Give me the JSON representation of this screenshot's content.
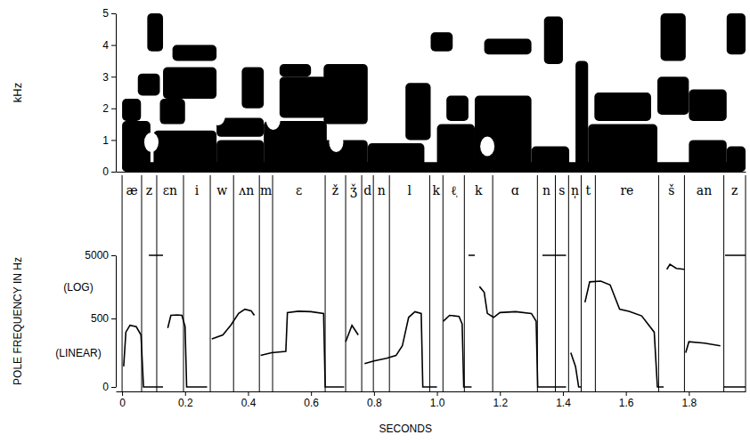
{
  "chart_data": [
    {
      "type": "spectrogram",
      "ylabel": "kHz",
      "xlim": [
        -0.02,
        1.98
      ],
      "ylim": [
        0,
        5
      ],
      "yticks": [
        0,
        1,
        2,
        3,
        4,
        5
      ],
      "tick_labels": "y",
      "color": "#000000",
      "regions": [
        [
          0.0,
          1.98,
          0.0,
          0.3
        ],
        [
          0.0,
          0.09,
          0.0,
          1.6
        ],
        [
          0.0,
          0.06,
          1.6,
          2.3
        ],
        [
          0.05,
          0.12,
          2.4,
          3.1
        ],
        [
          0.08,
          0.13,
          3.8,
          5.0
        ],
        [
          0.1,
          0.3,
          0.0,
          1.3
        ],
        [
          0.12,
          0.2,
          1.5,
          2.3
        ],
        [
          0.13,
          0.3,
          2.3,
          3.3
        ],
        [
          0.16,
          0.3,
          3.5,
          4.0
        ],
        [
          0.3,
          0.45,
          0.0,
          1.0
        ],
        [
          0.3,
          0.45,
          1.1,
          1.7
        ],
        [
          0.38,
          0.45,
          2.0,
          3.3
        ],
        [
          0.45,
          0.65,
          0.0,
          1.6
        ],
        [
          0.5,
          0.65,
          1.7,
          3.0
        ],
        [
          0.5,
          0.6,
          3.0,
          3.4
        ],
        [
          0.62,
          0.78,
          0.0,
          1.0
        ],
        [
          0.64,
          0.78,
          1.5,
          3.4
        ],
        [
          0.78,
          0.96,
          0.0,
          0.9
        ],
        [
          0.9,
          0.98,
          1.0,
          2.8
        ],
        [
          0.98,
          1.05,
          3.8,
          4.4
        ],
        [
          1.0,
          1.12,
          0.0,
          1.5
        ],
        [
          1.03,
          1.1,
          1.6,
          2.4
        ],
        [
          1.12,
          1.3,
          0.0,
          2.4
        ],
        [
          1.15,
          1.3,
          3.7,
          4.2
        ],
        [
          1.3,
          1.42,
          0.0,
          0.8
        ],
        [
          1.34,
          1.4,
          3.4,
          4.9
        ],
        [
          1.44,
          1.48,
          0.0,
          3.5
        ],
        [
          1.48,
          1.7,
          0.0,
          1.5
        ],
        [
          1.5,
          1.68,
          1.6,
          2.5
        ],
        [
          1.7,
          1.8,
          1.8,
          3.0
        ],
        [
          1.71,
          1.79,
          3.5,
          5.0
        ],
        [
          1.8,
          1.92,
          0.0,
          1.0
        ],
        [
          1.8,
          1.92,
          1.6,
          2.6
        ],
        [
          1.92,
          1.98,
          3.7,
          5.0
        ],
        [
          1.92,
          1.98,
          0.0,
          0.8
        ]
      ],
      "holes": [
        [
          0.093,
          0.93
        ],
        [
          0.305,
          1.77
        ],
        [
          0.48,
          1.63
        ],
        [
          0.68,
          0.93
        ],
        [
          1.16,
          0.8
        ]
      ]
    },
    {
      "type": "line",
      "ylabel": "POLE FREQUENCY IN Hz",
      "xlabel": "SECONDS",
      "annotations": [
        "(LOG)",
        "(LINEAR)"
      ],
      "xlim": [
        -0.02,
        1.98
      ],
      "ylim": [
        0,
        5000
      ],
      "yticks": [
        0,
        500,
        5000
      ],
      "xticks": [
        0,
        0.2,
        0.4,
        0.6,
        0.8,
        {
          "value": 1,
          "label": "1.0"
        },
        1.2,
        1.4,
        1.6,
        1.8
      ],
      "segments": [
        "æ",
        "z",
        "ɛn",
        "i",
        "w",
        "ʌn",
        "m",
        "ɛ",
        "ž",
        "ǯ",
        "d",
        "n",
        "l",
        "k",
        "ℓ̩",
        "k",
        "ɑ",
        "n",
        "s",
        "n̩",
        "t",
        "re",
        "š",
        "an",
        "z"
      ],
      "boundaries": [
        0,
        0.062,
        0.11,
        0.195,
        0.28,
        0.354,
        0.436,
        0.478,
        0.645,
        0.71,
        0.761,
        0.798,
        0.849,
        0.977,
        1.019,
        1.087,
        1.177,
        1.319,
        1.376,
        1.418,
        1.458,
        1.503,
        1.704,
        1.786,
        1.911,
        1.98
      ],
      "series": [
        {
          "color": "#000000",
          "x": [
            0.005,
            0.012,
            0.025,
            0.045,
            0.06,
            0.068,
            0.13,
            null,
            0.085,
            0.13,
            null,
            0.145,
            0.155,
            0.175,
            0.19,
            0.2,
            0.205,
            0.27,
            null,
            0.285,
            0.32,
            0.345,
            0.37,
            0.39,
            0.41,
            0.42,
            null,
            0.44,
            0.475,
            0.52,
            0.525,
            0.56,
            0.6,
            0.64,
            0.645,
            0.705,
            null,
            0.71,
            0.73,
            0.75,
            null,
            0.77,
            0.8,
            0.84,
            0.87,
            0.89,
            0.91,
            0.93,
            0.95,
            0.955,
            1.0,
            null,
            1.02,
            1.04,
            1.07,
            1.08,
            1.085,
            1.11,
            null,
            1.1,
            1.12,
            null,
            1.135,
            1.15,
            1.16,
            1.18,
            1.2,
            1.25,
            1.3,
            1.315,
            1.32,
            1.41,
            null,
            1.335,
            1.41,
            null,
            1.425,
            1.44,
            1.45,
            1.46,
            null,
            1.47,
            1.485,
            1.52,
            1.55,
            1.58,
            1.61,
            1.65,
            1.69,
            1.7,
            1.72,
            null,
            1.73,
            1.74,
            1.76,
            1.785,
            null,
            1.79,
            1.8,
            1.85,
            1.9,
            null,
            1.915,
            1.98,
            null,
            1.91,
            1.98
          ],
          "values": [
            150,
            400,
            450,
            440,
            380,
            0,
            0,
            null,
            5000,
            5000,
            null,
            430,
            560,
            570,
            560,
            440,
            0,
            0,
            null,
            350,
            380,
            450,
            600,
            700,
            660,
            560,
            null,
            230,
            250,
            260,
            620,
            650,
            640,
            600,
            0,
            0,
            null,
            330,
            450,
            380,
            null,
            170,
            190,
            210,
            230,
            300,
            520,
            640,
            600,
            0,
            0,
            null,
            480,
            560,
            540,
            460,
            0,
            0,
            null,
            5000,
            5000,
            null,
            1600,
            1300,
            600,
            520,
            620,
            640,
            600,
            480,
            0,
            0,
            null,
            5000,
            5000,
            null,
            250,
            150,
            0,
            0,
            null,
            900,
            1900,
            1950,
            1700,
            700,
            650,
            550,
            400,
            0,
            0,
            null,
            3000,
            3600,
            3100,
            3000,
            null,
            250,
            330,
            320,
            300,
            null,
            5000,
            5000,
            null,
            0,
            0
          ]
        }
      ]
    }
  ]
}
